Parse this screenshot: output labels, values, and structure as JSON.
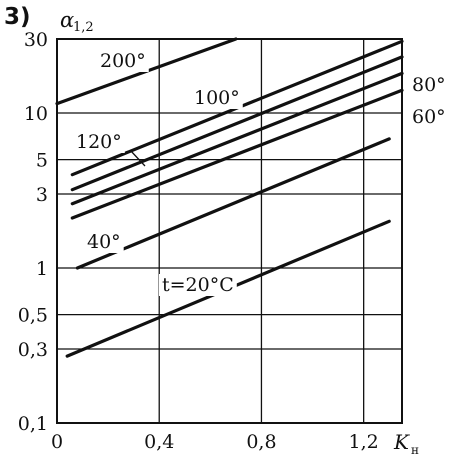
{
  "panel_label": "3)",
  "chart_data": {
    "type": "line",
    "title": "",
    "xlabel": "K",
    "xlabel_subscript": "н",
    "ylabel": "α",
    "ylabel_subscript": "1,2",
    "y_scale": "log",
    "xlim": [
      0,
      1.35
    ],
    "ylim": [
      0.1,
      30
    ],
    "x_tick_labels": [
      "0",
      "0,4",
      "0,8",
      "1,2"
    ],
    "x_tick_values": [
      0,
      0.4,
      0.8,
      1.2
    ],
    "y_tick_labels": [
      "0,1",
      "0,3",
      "0,5",
      "1",
      "3",
      "5",
      "10",
      "30"
    ],
    "y_tick_values": [
      0.1,
      0.3,
      0.5,
      1,
      3,
      5,
      10,
      30
    ],
    "grid": true,
    "series": [
      {
        "name": "200°",
        "x": [
          0,
          0.7
        ],
        "y": [
          11.5,
          30
        ]
      },
      {
        "name": "120°",
        "x": [
          0.06,
          1.35
        ],
        "y": [
          4.0,
          29
        ]
      },
      {
        "name": "100°",
        "x": [
          0.06,
          1.35
        ],
        "y": [
          3.2,
          23
        ]
      },
      {
        "name": "80°",
        "x": [
          0.06,
          1.35
        ],
        "y": [
          2.6,
          18
        ]
      },
      {
        "name": "60°",
        "x": [
          0.06,
          1.35
        ],
        "y": [
          2.1,
          14
        ]
      },
      {
        "name": "40°",
        "x": [
          0.08,
          1.3
        ],
        "y": [
          1.0,
          6.8
        ]
      },
      {
        "name": "t=20°C",
        "x": [
          0.04,
          1.3
        ],
        "y": [
          0.27,
          2.0
        ]
      }
    ]
  }
}
